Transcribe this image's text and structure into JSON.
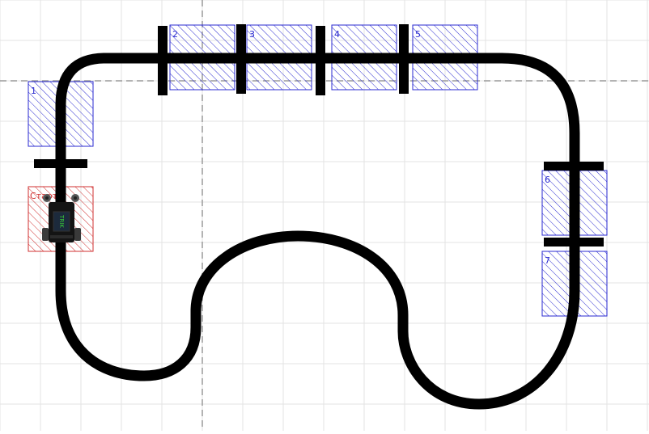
{
  "scene": {
    "zones": [
      {
        "label": "1",
        "kind": "checkpoint"
      },
      {
        "label": "2",
        "kind": "checkpoint"
      },
      {
        "label": "3",
        "kind": "checkpoint"
      },
      {
        "label": "4",
        "kind": "checkpoint"
      },
      {
        "label": "5",
        "kind": "checkpoint"
      },
      {
        "label": "6",
        "kind": "checkpoint"
      },
      {
        "label": "7",
        "kind": "checkpoint"
      }
    ],
    "start_zone": {
      "label": "Старт"
    },
    "robot": {
      "screen_text": "TRIK"
    },
    "colors": {
      "grid": "#e3e3e3",
      "axis": "#9a9a9a",
      "line": "#000000",
      "zone": "#2a2ad0",
      "start": "#d03030"
    }
  }
}
